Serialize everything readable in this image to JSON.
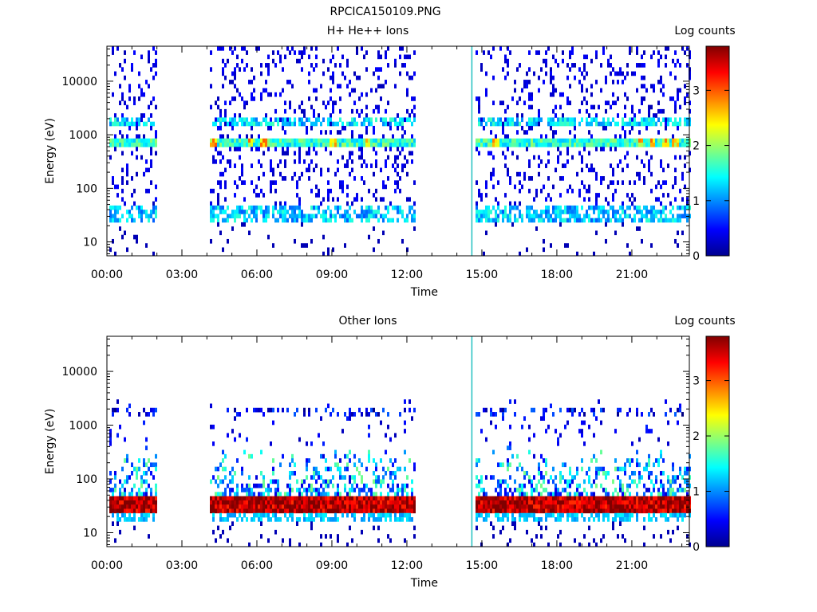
{
  "figure": {
    "title": "RPCICA150109.PNG"
  },
  "chart_data": [
    {
      "type": "heatmap",
      "title": "H+ He++ Ions",
      "xlabel": "Time",
      "ylabel": "Energy (eV)",
      "x_ticks": [
        "00:00",
        "03:00",
        "06:00",
        "09:00",
        "12:00",
        "15:00",
        "18:00",
        "21:00"
      ],
      "x_tick_hours": [
        0,
        3,
        6,
        9,
        12,
        15,
        18,
        21
      ],
      "xlim_hours": [
        0,
        23.3
      ],
      "y_scale": "log",
      "ylim": [
        5.5,
        45000
      ],
      "y_ticks": [
        "10",
        "100",
        "1000",
        "10000"
      ],
      "y_tick_values": [
        10,
        100,
        1000,
        10000
      ],
      "colorbar": {
        "label": "Log counts",
        "ticks": [
          "0",
          "1",
          "2",
          "3"
        ],
        "range": [
          0,
          3.8
        ]
      },
      "data_segments_hours": [
        [
          0.05,
          1.95
        ],
        [
          4.1,
          12.3
        ],
        [
          14.7,
          23.3
        ]
      ],
      "bands": [
        {
          "name": "low-energy band",
          "energy_eV": [
            25,
            45
          ],
          "log_counts": 1.2
        },
        {
          "name": "~700 eV band",
          "energy_eV": [
            600,
            850
          ],
          "log_counts": 1.6
        },
        {
          "name": "~1700 eV band",
          "energy_eV": [
            1500,
            2000
          ],
          "log_counts": 1.3
        }
      ],
      "hotspots_hours": [
        4.2,
        5.7,
        6.2,
        9.0,
        10.4,
        15.5,
        21.3,
        21.8,
        22.3,
        22.7
      ],
      "hotspot_log_counts": 2.5,
      "vertical_line": {
        "hour": 14.6,
        "color": "#20c0c0"
      }
    },
    {
      "type": "heatmap",
      "title": "Other Ions",
      "xlabel": "Time",
      "ylabel": "Energy (eV)",
      "x_ticks": [
        "00:00",
        "03:00",
        "06:00",
        "09:00",
        "12:00",
        "15:00",
        "18:00",
        "21:00"
      ],
      "x_tick_hours": [
        0,
        3,
        6,
        9,
        12,
        15,
        18,
        21
      ],
      "xlim_hours": [
        0,
        23.3
      ],
      "y_scale": "log",
      "ylim": [
        5.5,
        45000
      ],
      "y_ticks": [
        "10",
        "100",
        "1000",
        "10000"
      ],
      "y_tick_values": [
        10,
        100,
        1000,
        10000
      ],
      "colorbar": {
        "label": "Log counts",
        "ticks": [
          "0",
          "1",
          "2",
          "3"
        ],
        "range": [
          0,
          3.8
        ]
      },
      "data_segments_hours": [
        [
          0.05,
          1.95
        ],
        [
          4.1,
          12.3
        ],
        [
          14.7,
          23.3
        ]
      ],
      "bands": [
        {
          "name": "dense band",
          "energy_eV": [
            22,
            45
          ],
          "log_counts": 3.6
        },
        {
          "name": "weak ~1700 eV band",
          "energy_eV": [
            1500,
            2000
          ],
          "log_counts": 0.4
        }
      ],
      "vertical_line": {
        "hour": 14.6,
        "color": "#20c0c0"
      }
    }
  ]
}
